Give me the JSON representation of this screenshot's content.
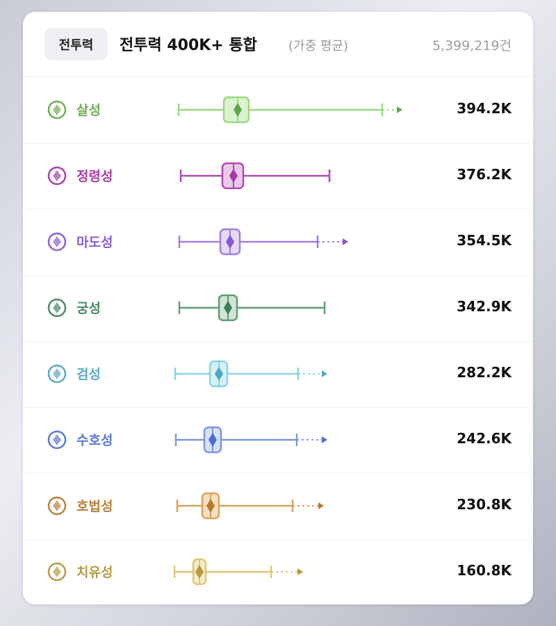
{
  "header": {
    "badge": "전투력",
    "title": "전투력 400K+ 통합",
    "note": "(가중 평균)",
    "count": "5,399,219건"
  },
  "rows": [
    {
      "class": "살성",
      "value": "394.2K"
    },
    {
      "class": "정령성",
      "value": "376.2K"
    },
    {
      "class": "마도성",
      "value": "354.5K"
    },
    {
      "class": "궁성",
      "value": "342.9K"
    },
    {
      "class": "검성",
      "value": "282.2K"
    },
    {
      "class": "수호성",
      "value": "242.6K"
    },
    {
      "class": "호법성",
      "value": "230.8K"
    },
    {
      "class": "치유성",
      "value": "160.8K"
    }
  ]
}
